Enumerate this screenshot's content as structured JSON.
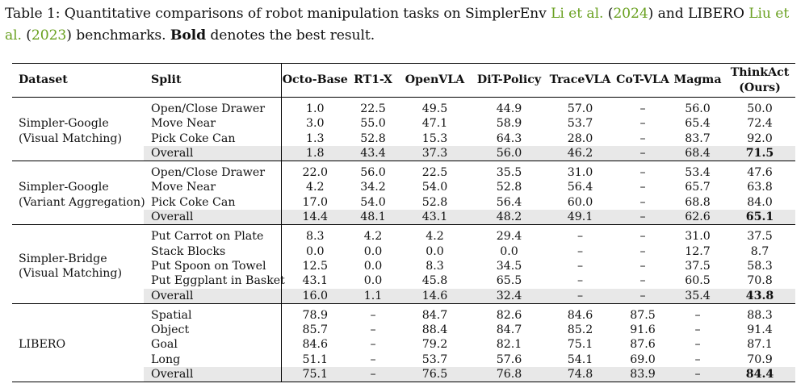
{
  "caption": {
    "prefix": "Table 1: Quantitative comparisons of robot manipulation tasks on SimplerEnv ",
    "cite1_author": "Li et al.",
    "cite1_open": " (",
    "cite1_year": "2024",
    "cite1_close": ") and LIBERO ",
    "cite2_author": "Liu et al.",
    "cite2_open": " (",
    "cite2_year": "2023",
    "cite2_close": ") benchmarks. ",
    "bold_word": "Bold",
    "suffix": " denotes the best result."
  },
  "headers": {
    "dataset": "Dataset",
    "split": "Split",
    "models": [
      "Octo-Base",
      "RT1-X",
      "OpenVLA",
      "DiT-Policy",
      "TraceVLA",
      "CoT-VLA",
      "Magma"
    ],
    "ours_name": "ThinkAct",
    "ours_sub": "(Ours)"
  },
  "groups": [
    {
      "dataset": [
        "Simpler-Google",
        "(Visual Matching)"
      ],
      "rows": [
        {
          "split": "Open/Close Drawer",
          "values": [
            "1.0",
            "22.5",
            "49.5",
            "44.9",
            "57.0",
            "–",
            "56.0",
            "50.0"
          ]
        },
        {
          "split": "Move Near",
          "values": [
            "3.0",
            "55.0",
            "47.1",
            "58.9",
            "53.7",
            "–",
            "65.4",
            "72.4"
          ]
        },
        {
          "split": "Pick Coke Can",
          "values": [
            "1.3",
            "52.8",
            "15.3",
            "64.3",
            "28.0",
            "–",
            "83.7",
            "92.0"
          ]
        },
        {
          "split": "Overall",
          "values": [
            "1.8",
            "43.4",
            "37.3",
            "56.0",
            "46.2",
            "–",
            "68.4",
            "71.5"
          ]
        }
      ]
    },
    {
      "dataset": [
        "Simpler-Google",
        "(Variant Aggregation)"
      ],
      "rows": [
        {
          "split": "Open/Close Drawer",
          "values": [
            "22.0",
            "56.0",
            "22.5",
            "35.5",
            "31.0",
            "–",
            "53.4",
            "47.6"
          ]
        },
        {
          "split": "Move Near",
          "values": [
            "4.2",
            "34.2",
            "54.0",
            "52.8",
            "56.4",
            "–",
            "65.7",
            "63.8"
          ]
        },
        {
          "split": "Pick Coke Can",
          "values": [
            "17.0",
            "54.0",
            "52.8",
            "56.4",
            "60.0",
            "–",
            "68.8",
            "84.0"
          ]
        },
        {
          "split": "Overall",
          "values": [
            "14.4",
            "48.1",
            "43.1",
            "48.2",
            "49.1",
            "–",
            "62.6",
            "65.1"
          ]
        }
      ]
    },
    {
      "dataset": [
        "Simpler-Bridge",
        "(Visual Matching)"
      ],
      "rows": [
        {
          "split": "Put Carrot on Plate",
          "values": [
            "8.3",
            "4.2",
            "4.2",
            "29.4",
            "–",
            "–",
            "31.0",
            "37.5"
          ]
        },
        {
          "split": "Stack Blocks",
          "values": [
            "0.0",
            "0.0",
            "0.0",
            "0.0",
            "–",
            "–",
            "12.7",
            "8.7"
          ]
        },
        {
          "split": "Put Spoon on Towel",
          "values": [
            "12.5",
            "0.0",
            "8.3",
            "34.5",
            "–",
            "–",
            "37.5",
            "58.3"
          ]
        },
        {
          "split": "Put Eggplant in Basket",
          "values": [
            "43.1",
            "0.0",
            "45.8",
            "65.5",
            "–",
            "–",
            "60.5",
            "70.8"
          ]
        },
        {
          "split": "Overall",
          "values": [
            "16.0",
            "1.1",
            "14.6",
            "32.4",
            "–",
            "–",
            "35.4",
            "43.8"
          ]
        }
      ]
    },
    {
      "dataset": [
        "LIBERO"
      ],
      "rows": [
        {
          "split": "Spatial",
          "values": [
            "78.9",
            "–",
            "84.7",
            "82.6",
            "84.6",
            "87.5",
            "–",
            "88.3"
          ]
        },
        {
          "split": "Object",
          "values": [
            "85.7",
            "–",
            "88.4",
            "84.7",
            "85.2",
            "91.6",
            "–",
            "91.4"
          ]
        },
        {
          "split": "Goal",
          "values": [
            "84.6",
            "–",
            "79.2",
            "82.1",
            "75.1",
            "87.6",
            "–",
            "87.1"
          ]
        },
        {
          "split": "Long",
          "values": [
            "51.1",
            "–",
            "53.7",
            "57.6",
            "54.1",
            "69.0",
            "–",
            "70.9"
          ]
        },
        {
          "split": "Overall",
          "values": [
            "75.1",
            "–",
            "76.5",
            "76.8",
            "74.8",
            "83.9",
            "–",
            "84.4"
          ]
        }
      ]
    }
  ]
}
